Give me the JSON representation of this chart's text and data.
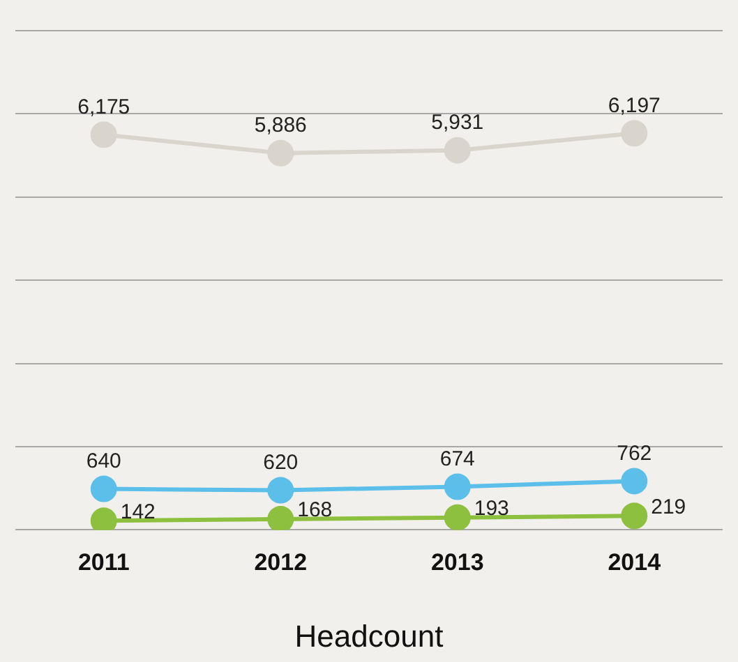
{
  "chart_data": {
    "type": "line",
    "xlabel": "Headcount",
    "categories": [
      "2011",
      "2012",
      "2013",
      "2014"
    ],
    "series": [
      {
        "color": "#d9d4cc",
        "values": [
          6175,
          5886,
          5931,
          6197
        ],
        "value_labels": [
          "6,175",
          "5,886",
          "5,931",
          "6,197"
        ]
      },
      {
        "color": "#5bbfea",
        "values": [
          640,
          620,
          674,
          762
        ],
        "value_labels": [
          "640",
          "620",
          "674",
          "762"
        ]
      },
      {
        "color": "#8dc03f",
        "values": [
          142,
          168,
          193,
          219
        ],
        "value_labels": [
          "142",
          "168",
          "193",
          "219"
        ]
      }
    ],
    "ylim": [
      0,
      7800
    ],
    "yticks": [
      {
        "value": 0,
        "label": null
      },
      {
        "value": 1300,
        "label": null
      },
      {
        "value": 2600,
        "label": null
      },
      {
        "value": 3900,
        "label": null
      },
      {
        "value": 5200,
        "label": null
      },
      {
        "value": 6500,
        "label": null
      },
      {
        "value": 7800,
        "label": null
      }
    ],
    "tick_labels": "x",
    "grid": "y",
    "legend": false,
    "marker": "circle",
    "line_style": "solid"
  }
}
